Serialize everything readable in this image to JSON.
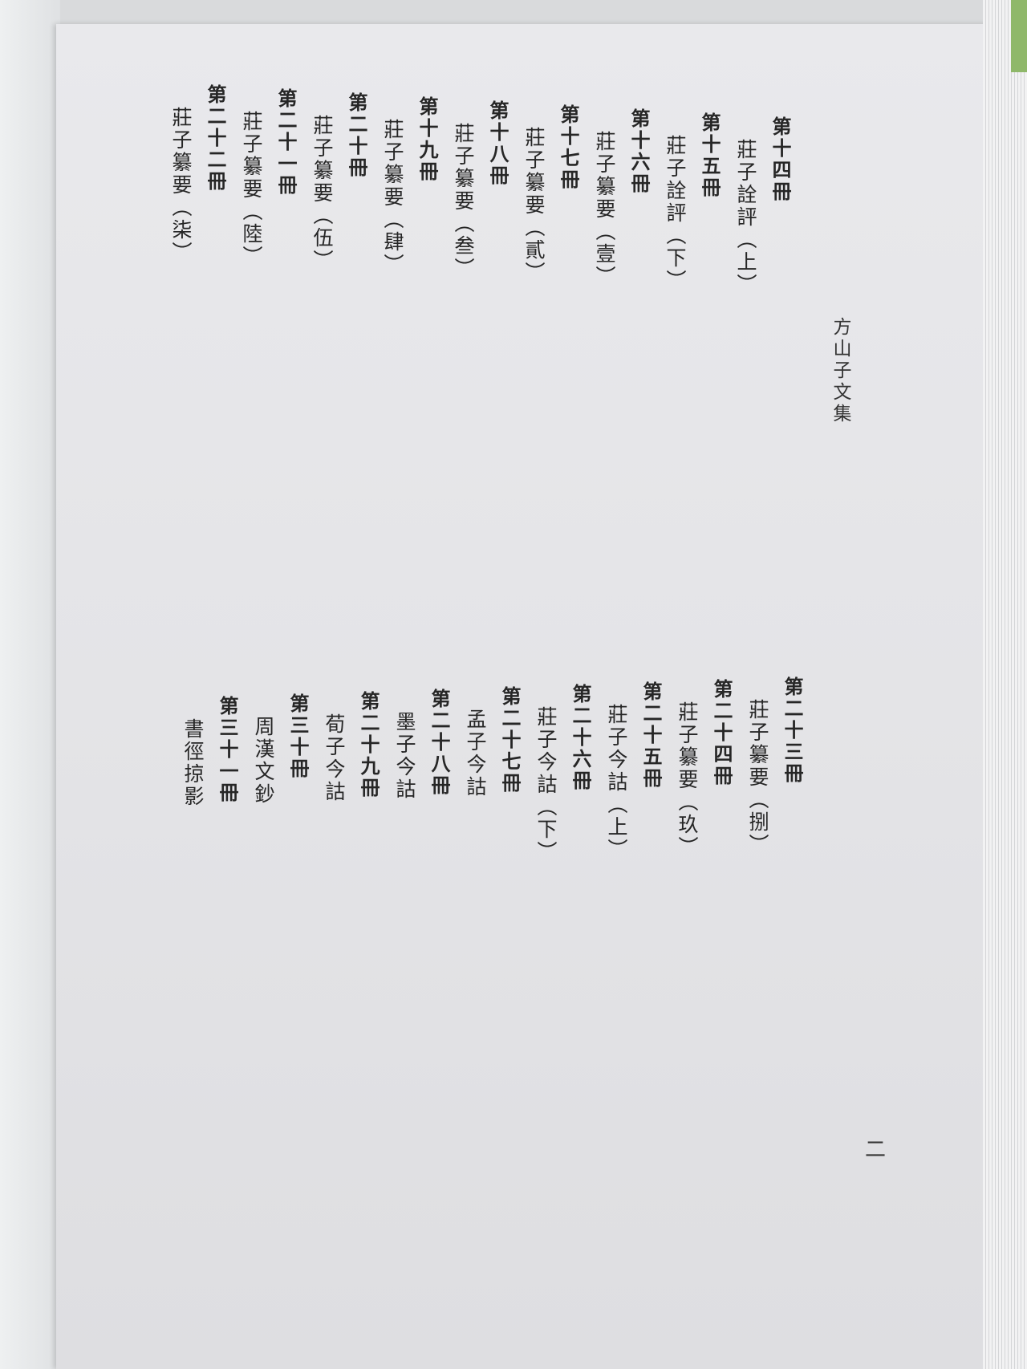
{
  "header": {
    "title": "方山子文集"
  },
  "page_number": "二",
  "top_block": [
    {
      "volume": "第十四冊",
      "work": "莊子詮評（上）"
    },
    {
      "volume": "第十五冊",
      "work": "莊子詮評（下）"
    },
    {
      "volume": "第十六冊",
      "work": "莊子纂要（壹）"
    },
    {
      "volume": "第十七冊",
      "work": "莊子纂要（貳）"
    },
    {
      "volume": "第十八冊",
      "work": "莊子纂要（叁）"
    },
    {
      "volume": "第十九冊",
      "work": "莊子纂要（肆）"
    },
    {
      "volume": "第二十冊",
      "work": "莊子纂要（伍）"
    },
    {
      "volume": "第二十一冊",
      "work": "莊子纂要（陸）"
    },
    {
      "volume": "第二十二冊",
      "work": "莊子纂要（柒）"
    }
  ],
  "bottom_block": [
    {
      "volume": "第二十三冊",
      "work": "莊子纂要（捌）"
    },
    {
      "volume": "第二十四冊",
      "work": "莊子纂要（玖）"
    },
    {
      "volume": "第二十五冊",
      "work": "莊子今詁（上）"
    },
    {
      "volume": "第二十六冊",
      "work": "莊子今詁（下）"
    },
    {
      "volume": "第二十七冊",
      "work": "孟子今詁"
    },
    {
      "volume": "第二十八冊",
      "work": "墨子今詁"
    },
    {
      "volume": "第二十九冊",
      "work": "荀子今詁"
    },
    {
      "volume": "第三十冊",
      "work": "周漢文鈔"
    },
    {
      "volume": "第三十一冊",
      "work": "書徑掠影"
    }
  ]
}
